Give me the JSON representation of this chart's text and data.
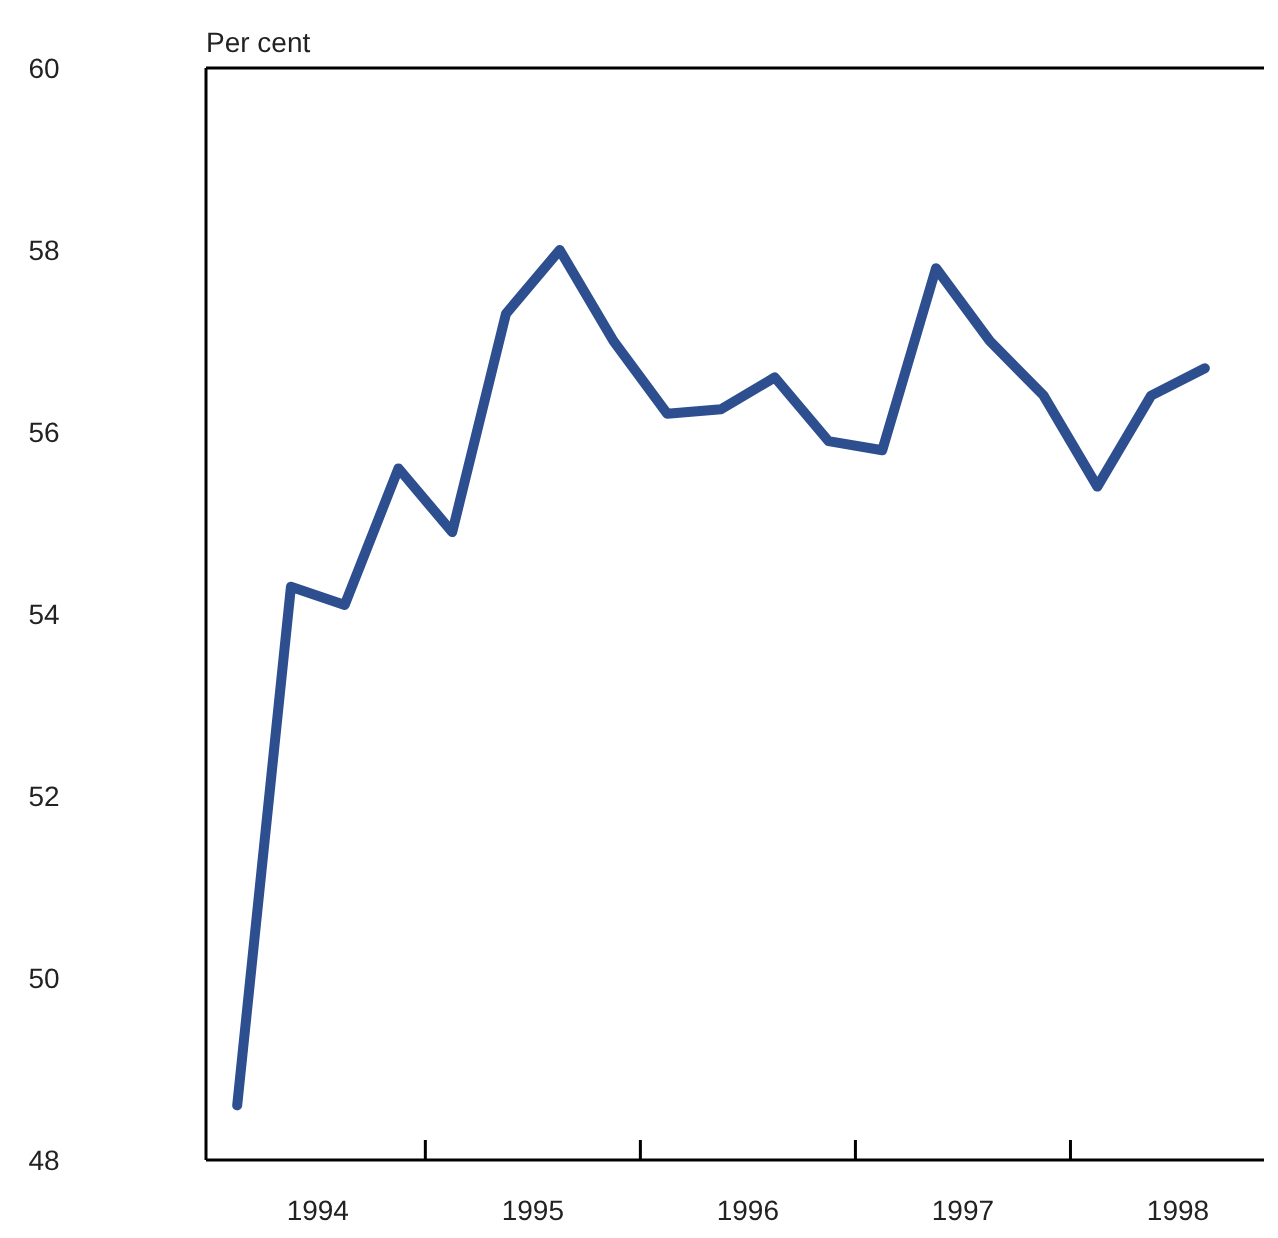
{
  "chart_data": {
    "type": "line",
    "ylabel": "Per cent",
    "x": [
      1994.125,
      1994.375,
      1994.625,
      1994.875,
      1995.125,
      1995.375,
      1995.625,
      1995.875,
      1996.125,
      1996.375,
      1996.625,
      1996.875,
      1997.125,
      1997.375,
      1997.625,
      1997.875,
      1998.125,
      1998.375,
      1998.625
    ],
    "series": [
      {
        "color": "#2e4f8f",
        "values": [
          48.6,
          54.3,
          54.1,
          55.6,
          54.9,
          57.3,
          58.0,
          57.0,
          56.2,
          56.25,
          56.6,
          55.9,
          55.8,
          57.8,
          57.0,
          56.4,
          55.4,
          56.4,
          56.7
        ]
      }
    ],
    "xlim": [
      1993.98,
      1998.9
    ],
    "xticks": [
      {
        "value": 1994.5,
        "label": "1994"
      },
      {
        "value": 1995,
        "label": null
      },
      {
        "value": 1995.5,
        "label": "1995"
      },
      {
        "value": 1996,
        "label": null
      },
      {
        "value": 1996.5,
        "label": "1996"
      },
      {
        "value": 1997,
        "label": null
      },
      {
        "value": 1997.5,
        "label": "1997"
      },
      {
        "value": 1998,
        "label": null
      },
      {
        "value": 1998.5,
        "label": "1998"
      }
    ],
    "ylim": [
      48,
      60
    ],
    "yticks": [
      48,
      50,
      52,
      54,
      56,
      58,
      60
    ],
    "marker": "none",
    "line_style": "solid"
  }
}
